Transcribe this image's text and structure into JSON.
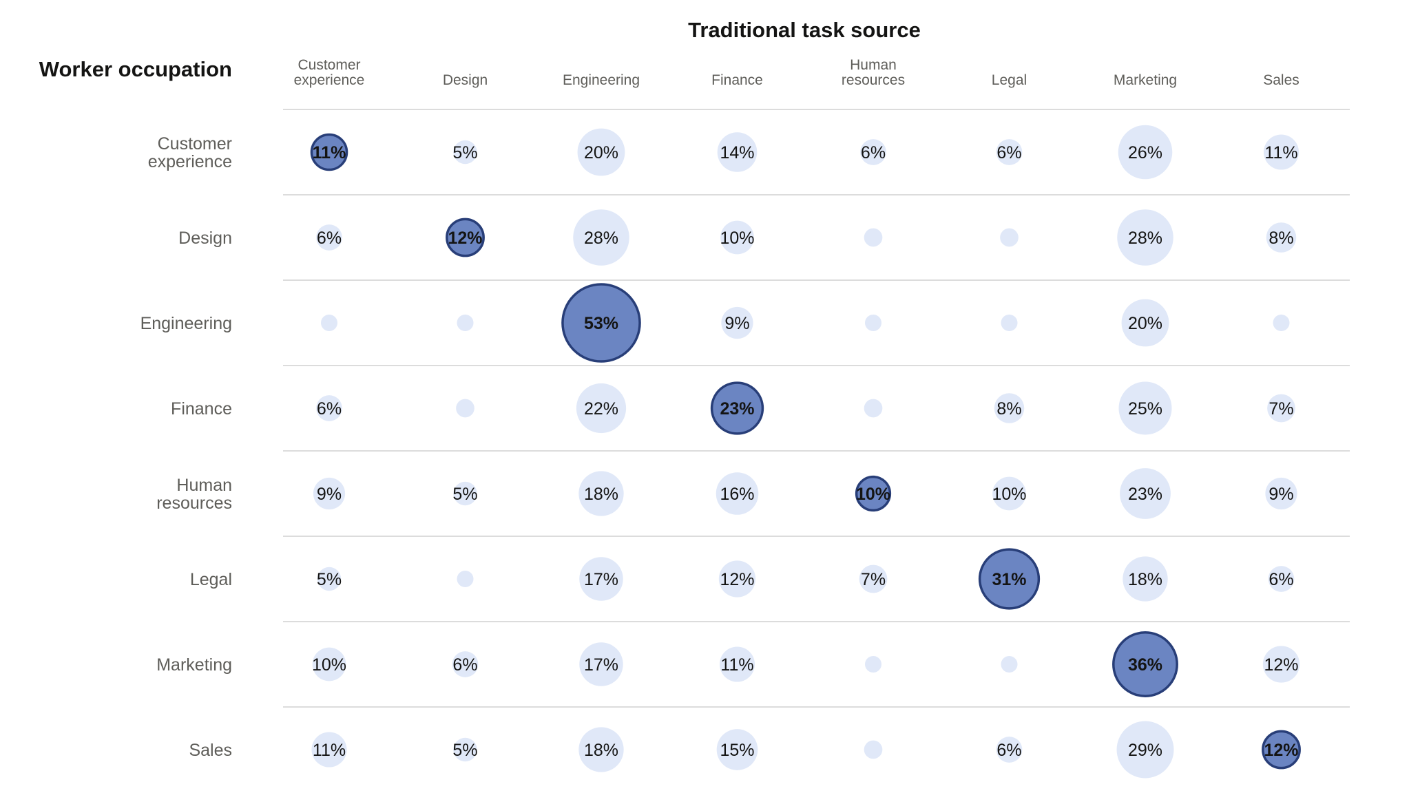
{
  "chart_data": {
    "type": "bubble-matrix",
    "title": "Traditional task source",
    "row_axis_title": "Worker occupation",
    "columns": [
      [
        "Customer",
        "experience"
      ],
      [
        "Design"
      ],
      [
        "Engineering"
      ],
      [
        "Finance"
      ],
      [
        "Human",
        "resources"
      ],
      [
        "Legal"
      ],
      [
        "Marketing"
      ],
      [
        "Sales"
      ]
    ],
    "rows": [
      [
        "Customer",
        "experience"
      ],
      [
        "Design"
      ],
      [
        "Engineering"
      ],
      [
        "Finance"
      ],
      [
        "Human",
        "resources"
      ],
      [
        "Legal"
      ],
      [
        "Marketing"
      ],
      [
        "Sales"
      ]
    ],
    "values": [
      [
        11,
        5,
        20,
        14,
        6,
        6,
        26,
        11
      ],
      [
        6,
        12,
        28,
        10,
        3,
        3,
        28,
        8
      ],
      [
        2,
        2,
        53,
        9,
        1,
        2,
        20,
        2
      ],
      [
        6,
        3,
        22,
        23,
        3,
        8,
        25,
        7
      ],
      [
        9,
        5,
        18,
        16,
        10,
        10,
        23,
        9
      ],
      [
        5,
        2,
        17,
        12,
        7,
        31,
        18,
        6
      ],
      [
        10,
        6,
        17,
        11,
        2,
        2,
        36,
        12
      ],
      [
        11,
        5,
        18,
        15,
        3,
        6,
        29,
        12
      ]
    ],
    "labels": [
      [
        "11%",
        "5%",
        "20%",
        "14%",
        "6%",
        "6%",
        "26%",
        "11%"
      ],
      [
        "6%",
        "12%",
        "28%",
        "10%",
        "",
        "",
        "28%",
        "8%"
      ],
      [
        "",
        "",
        "53%",
        "9%",
        "",
        "",
        "20%",
        ""
      ],
      [
        "6%",
        "",
        "22%",
        "23%",
        "",
        "8%",
        "25%",
        "7%"
      ],
      [
        "9%",
        "5%",
        "18%",
        "16%",
        "10%",
        "10%",
        "23%",
        "9%"
      ],
      [
        "5%",
        "",
        "17%",
        "12%",
        "7%",
        "31%",
        "18%",
        "6%"
      ],
      [
        "10%",
        "6%",
        "17%",
        "11%",
        "",
        "",
        "36%",
        "12%"
      ],
      [
        "11%",
        "5%",
        "18%",
        "15%",
        "",
        "6%",
        "29%",
        "12%"
      ]
    ],
    "colors": {
      "off_diagonal_fill": "#e0e8f8",
      "diagonal_fill": "#6b85c2",
      "diagonal_stroke": "#283e78",
      "text": "#141413",
      "axis_text": "#5e5d59",
      "grid": "#dcdcdc"
    }
  }
}
